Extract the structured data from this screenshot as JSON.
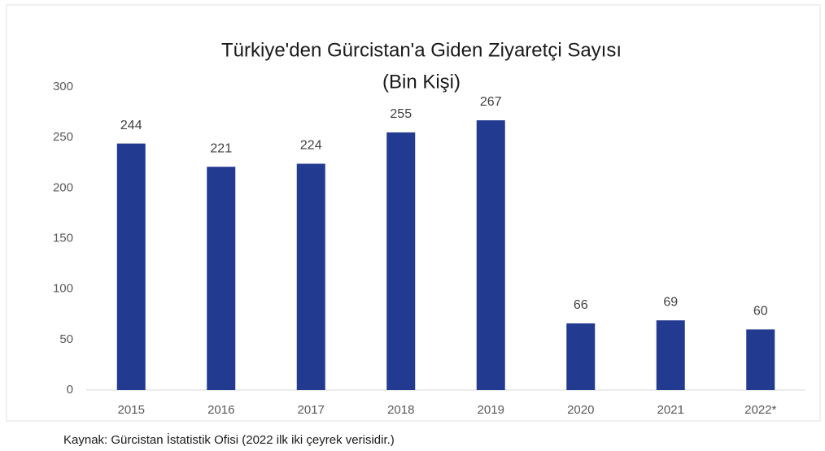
{
  "chart_data": {
    "type": "bar",
    "title": "Türkiye'den Gürcistan'a Giden Ziyaretçi Sayısı",
    "subtitle": "(Bin Kişi)",
    "categories": [
      "2015",
      "2016",
      "2017",
      "2018",
      "2019",
      "2020",
      "2021",
      "2022*"
    ],
    "values": [
      244,
      221,
      224,
      255,
      267,
      66,
      69,
      60
    ],
    "color": "#233a91",
    "ylim": [
      0,
      300
    ],
    "yticks": [
      0,
      50,
      100,
      150,
      200,
      250,
      300
    ],
    "grid": false,
    "source": "Kaynak: Gürcistan İstatistik Ofisi (2022 ilk iki çeyrek verisidir.)"
  }
}
